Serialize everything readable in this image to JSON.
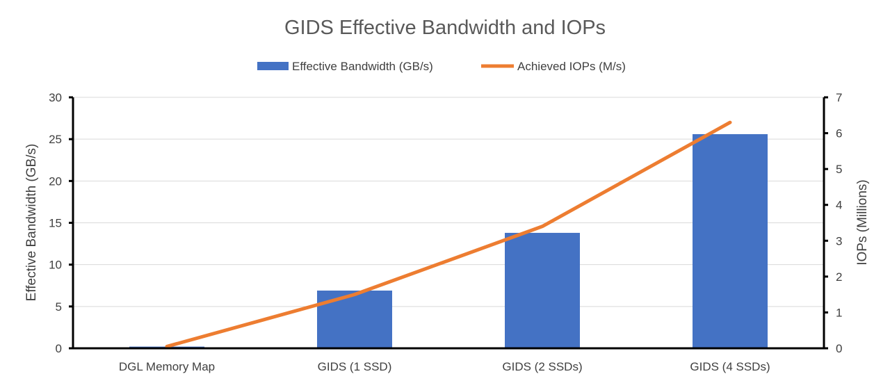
{
  "chart_data": {
    "type": "bar",
    "title": "GIDS Effective Bandwidth and IOPs",
    "categories": [
      "DGL Memory Map",
      "GIDS (1 SSD)",
      "GIDS (2 SSDs)",
      "GIDS (4 SSDs)"
    ],
    "series": [
      {
        "name": "Effective Bandwidth (GB/s)",
        "type": "bar",
        "axis": "left",
        "color": "#4472C4",
        "values": [
          0.2,
          6.9,
          13.8,
          25.6
        ]
      },
      {
        "name": "Achieved IOPs (M/s)",
        "type": "line",
        "axis": "right",
        "color": "#ED7D31",
        "values": [
          0.05,
          1.5,
          3.4,
          6.3
        ]
      }
    ],
    "ylabel": "Effective Bandwidth (GB/s)",
    "ylim": [
      0,
      30
    ],
    "yticks": [
      "0",
      "5",
      "10",
      "15",
      "20",
      "25",
      "30"
    ],
    "y2label": "IOPs (Millions)",
    "y2lim": [
      0,
      7
    ],
    "y2ticks": [
      "0",
      "1",
      "2",
      "3",
      "4",
      "5",
      "6",
      "7"
    ],
    "grid": true,
    "legend_position": "top"
  }
}
